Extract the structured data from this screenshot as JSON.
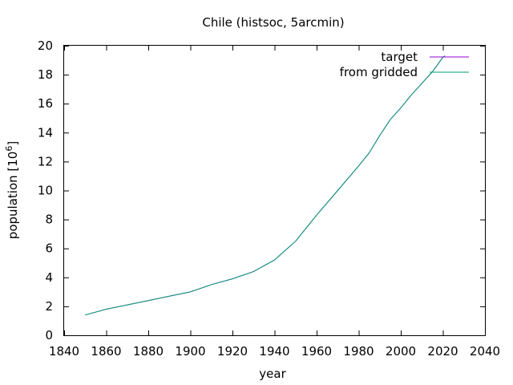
{
  "chart_data": {
    "type": "line",
    "title": "Chile (histsoc, 5arcmin)",
    "xlabel": "year",
    "ylabel_main": "population [10",
    "ylabel_exp": "6",
    "ylabel_close": "]",
    "xlim": [
      1840,
      2040
    ],
    "ylim": [
      0,
      20
    ],
    "xticks": [
      1840,
      1860,
      1880,
      1900,
      1920,
      1940,
      1960,
      1980,
      2000,
      2020,
      2040
    ],
    "yticks": [
      0,
      2,
      4,
      6,
      8,
      10,
      12,
      14,
      16,
      18,
      20
    ],
    "grid": false,
    "legend_position": "top-right",
    "series": [
      {
        "name": "target",
        "color": "#9400d3",
        "x": [
          1850,
          1860,
          1870,
          1880,
          1890,
          1900,
          1910,
          1920,
          1930,
          1940,
          1950,
          1960,
          1970,
          1980,
          1985,
          1990,
          1995,
          2000,
          2005,
          2010,
          2015,
          2018,
          2020,
          2021
        ],
        "y": [
          1.4,
          1.8,
          2.1,
          2.4,
          2.7,
          3.0,
          3.5,
          3.9,
          4.4,
          5.2,
          6.5,
          8.3,
          10.0,
          11.7,
          12.6,
          13.8,
          14.9,
          15.7,
          16.6,
          17.4,
          18.2,
          18.8,
          19.2,
          19.3
        ]
      },
      {
        "name": "from gridded",
        "color": "#009e73",
        "x": [
          1850,
          1860,
          1870,
          1880,
          1890,
          1900,
          1910,
          1920,
          1930,
          1940,
          1950,
          1960,
          1970,
          1980,
          1985,
          1990,
          1995,
          2000,
          2005,
          2010,
          2015,
          2018,
          2020,
          2021
        ],
        "y": [
          1.4,
          1.8,
          2.1,
          2.4,
          2.7,
          3.0,
          3.5,
          3.9,
          4.4,
          5.2,
          6.5,
          8.3,
          10.0,
          11.7,
          12.6,
          13.8,
          14.9,
          15.7,
          16.6,
          17.4,
          18.2,
          18.8,
          19.2,
          19.3
        ]
      }
    ]
  }
}
